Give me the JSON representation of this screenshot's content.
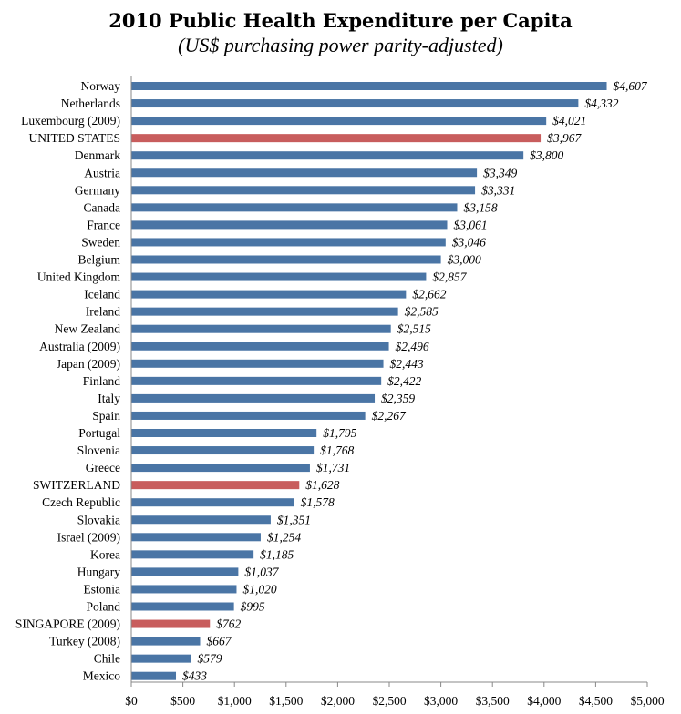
{
  "chart_data": {
    "type": "bar",
    "orientation": "horizontal",
    "title": "2010 Public Health Expenditure per Capita",
    "subtitle": "(US$ purchasing power parity-adjusted)",
    "xlabel": "",
    "ylabel": "",
    "xlim": [
      0,
      5000
    ],
    "grid": false,
    "legend": "none",
    "colors": {
      "default": "#4a75a5",
      "highlight": "#c85d5d"
    },
    "x_ticks": [
      "$0",
      "$500",
      "$1,000",
      "$1,500",
      "$2,000",
      "$2,500",
      "$3,000",
      "$3,500",
      "$4,000",
      "$4,500",
      "$5,000"
    ],
    "bars": [
      {
        "label": "Norway",
        "value": 4607,
        "value_label": "$4,607",
        "highlight": false
      },
      {
        "label": "Netherlands",
        "value": 4332,
        "value_label": "$4,332",
        "highlight": false
      },
      {
        "label": "Luxembourg (2009)",
        "value": 4021,
        "value_label": "$4,021",
        "highlight": false
      },
      {
        "label": "UNITED STATES",
        "value": 3967,
        "value_label": "$3,967",
        "highlight": true
      },
      {
        "label": "Denmark",
        "value": 3800,
        "value_label": "$3,800",
        "highlight": false
      },
      {
        "label": "Austria",
        "value": 3349,
        "value_label": "$3,349",
        "highlight": false
      },
      {
        "label": "Germany",
        "value": 3331,
        "value_label": "$3,331",
        "highlight": false
      },
      {
        "label": "Canada",
        "value": 3158,
        "value_label": "$3,158",
        "highlight": false
      },
      {
        "label": "France",
        "value": 3061,
        "value_label": "$3,061",
        "highlight": false
      },
      {
        "label": "Sweden",
        "value": 3046,
        "value_label": "$3,046",
        "highlight": false
      },
      {
        "label": "Belgium",
        "value": 3000,
        "value_label": "$3,000",
        "highlight": false
      },
      {
        "label": "United Kingdom",
        "value": 2857,
        "value_label": "$2,857",
        "highlight": false
      },
      {
        "label": "Iceland",
        "value": 2662,
        "value_label": "$2,662",
        "highlight": false
      },
      {
        "label": "Ireland",
        "value": 2585,
        "value_label": "$2,585",
        "highlight": false
      },
      {
        "label": "New Zealand",
        "value": 2515,
        "value_label": "$2,515",
        "highlight": false
      },
      {
        "label": "Australia (2009)",
        "value": 2496,
        "value_label": "$2,496",
        "highlight": false
      },
      {
        "label": "Japan (2009)",
        "value": 2443,
        "value_label": "$2,443",
        "highlight": false
      },
      {
        "label": "Finland",
        "value": 2422,
        "value_label": "$2,422",
        "highlight": false
      },
      {
        "label": "Italy",
        "value": 2359,
        "value_label": "$2,359",
        "highlight": false
      },
      {
        "label": "Spain",
        "value": 2267,
        "value_label": "$2,267",
        "highlight": false
      },
      {
        "label": "Portugal",
        "value": 1795,
        "value_label": "$1,795",
        "highlight": false
      },
      {
        "label": "Slovenia",
        "value": 1768,
        "value_label": "$1,768",
        "highlight": false
      },
      {
        "label": "Greece",
        "value": 1731,
        "value_label": "$1,731",
        "highlight": false
      },
      {
        "label": "SWITZERLAND",
        "value": 1628,
        "value_label": "$1,628",
        "highlight": true
      },
      {
        "label": "Czech Republic",
        "value": 1578,
        "value_label": "$1,578",
        "highlight": false
      },
      {
        "label": "Slovakia",
        "value": 1351,
        "value_label": "$1,351",
        "highlight": false
      },
      {
        "label": "Israel (2009)",
        "value": 1254,
        "value_label": "$1,254",
        "highlight": false
      },
      {
        "label": "Korea",
        "value": 1185,
        "value_label": "$1,185",
        "highlight": false
      },
      {
        "label": "Hungary",
        "value": 1037,
        "value_label": "$1,037",
        "highlight": false
      },
      {
        "label": "Estonia",
        "value": 1020,
        "value_label": "$1,020",
        "highlight": false
      },
      {
        "label": "Poland",
        "value": 995,
        "value_label": "$995",
        "highlight": false
      },
      {
        "label": "SINGAPORE (2009)",
        "value": 762,
        "value_label": "$762",
        "highlight": true
      },
      {
        "label": "Turkey (2008)",
        "value": 667,
        "value_label": "$667",
        "highlight": false
      },
      {
        "label": "Chile",
        "value": 579,
        "value_label": "$579",
        "highlight": false
      },
      {
        "label": "Mexico",
        "value": 433,
        "value_label": "$433",
        "highlight": false
      }
    ]
  }
}
